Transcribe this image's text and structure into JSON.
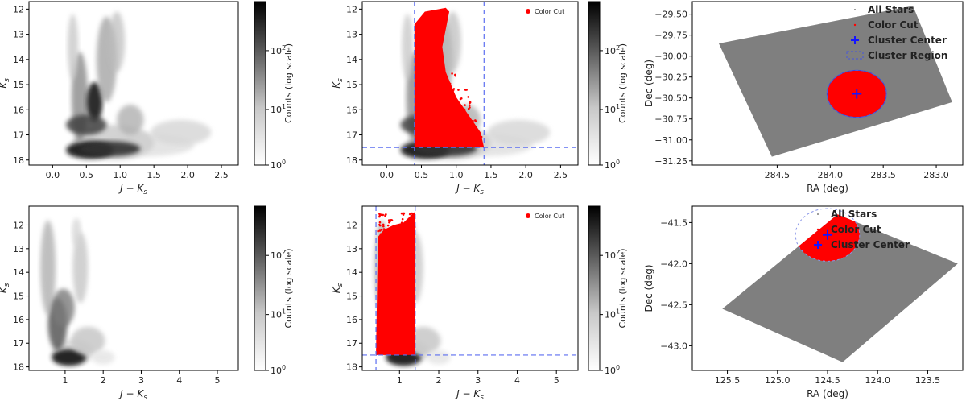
{
  "chart_data": [
    {
      "type": "heatmap",
      "panel": "top-left",
      "xlabel": "J − K_s",
      "ylabel": "K_s",
      "xlim": [
        -0.35,
        2.75
      ],
      "ylim": [
        18.2,
        11.7
      ],
      "xticks": [
        "0.0",
        "0.5",
        "1.0",
        "1.5",
        "2.0",
        "2.5"
      ],
      "xtick_values": [
        0,
        0.5,
        1,
        1.5,
        2,
        2.5
      ],
      "yticks": [
        "12",
        "13",
        "14",
        "15",
        "16",
        "17",
        "18"
      ],
      "ytick_values": [
        12,
        13,
        14,
        15,
        16,
        17,
        18
      ],
      "colorbar": {
        "label": "Counts (log scale)",
        "ticks": [
          "10^0",
          "10^1",
          "10^2"
        ]
      }
    },
    {
      "type": "heatmap",
      "panel": "top-middle",
      "xlabel": "J − K_s",
      "ylabel": "K_s",
      "xlim": [
        -0.35,
        2.75
      ],
      "ylim": [
        18.2,
        11.7
      ],
      "xticks": [
        "0.0",
        "0.5",
        "1.0",
        "1.5",
        "2.0",
        "2.5"
      ],
      "xtick_values": [
        0,
        0.5,
        1,
        1.5,
        2,
        2.5
      ],
      "yticks": [
        "12",
        "13",
        "14",
        "15",
        "16",
        "17",
        "18"
      ],
      "ytick_values": [
        12,
        13,
        14,
        15,
        16,
        17,
        18
      ],
      "legend": [
        "Color Cut"
      ],
      "legend_loc": "top-right",
      "cuts": {
        "j_k_min": 0.4,
        "j_k_max": 1.4,
        "ks_max": 17.5
      },
      "colorbar": {
        "label": "Counts (log scale)",
        "ticks": [
          "10^0",
          "10^1",
          "10^2"
        ]
      }
    },
    {
      "type": "scatter",
      "panel": "top-right",
      "xlabel": "RA (deg)",
      "ylabel": "Dec (deg)",
      "xlim": [
        285.3,
        282.75
      ],
      "ylim": [
        -31.3,
        -29.35
      ],
      "xticks": [
        "284.5",
        "284.0",
        "283.5",
        "283.0"
      ],
      "xtick_values": [
        284.5,
        284,
        283.5,
        283
      ],
      "yticks": [
        "-29.50",
        "-29.75",
        "-30.00",
        "-30.25",
        "-30.50",
        "-30.75",
        "-31.00",
        "-31.25"
      ],
      "ytick_values": [
        -29.5,
        -29.75,
        -30,
        -30.25,
        -30.5,
        -30.75,
        -31,
        -31.25
      ],
      "legend": [
        "All Stars",
        "Color Cut",
        "Cluster Center",
        "Cluster Region"
      ],
      "legend_loc": "top-right",
      "cluster_center": [
        283.75,
        -30.45
      ],
      "cluster_radius_deg": 0.28
    },
    {
      "type": "heatmap",
      "panel": "bottom-left",
      "xlabel": "J − K_s",
      "ylabel": "K_s",
      "xlim": [
        0.05,
        5.55
      ],
      "ylim": [
        18.15,
        11.2
      ],
      "xticks": [
        "1",
        "2",
        "3",
        "4",
        "5"
      ],
      "xtick_values": [
        1,
        2,
        3,
        4,
        5
      ],
      "yticks": [
        "12",
        "13",
        "14",
        "15",
        "16",
        "17",
        "18"
      ],
      "ytick_values": [
        12,
        13,
        14,
        15,
        16,
        17,
        18
      ],
      "colorbar": {
        "label": "Counts (log scale)",
        "ticks": [
          "10^0",
          "10^1",
          "10^2"
        ]
      }
    },
    {
      "type": "heatmap",
      "panel": "bottom-middle",
      "xlabel": "J − K_s",
      "ylabel": "K_s",
      "xlim": [
        0.05,
        5.55
      ],
      "ylim": [
        18.15,
        11.2
      ],
      "xticks": [
        "1",
        "2",
        "3",
        "4",
        "5"
      ],
      "xtick_values": [
        1,
        2,
        3,
        4,
        5
      ],
      "yticks": [
        "12",
        "13",
        "14",
        "15",
        "16",
        "17",
        "18"
      ],
      "ytick_values": [
        12,
        13,
        14,
        15,
        16,
        17,
        18
      ],
      "legend": [
        "Color Cut"
      ],
      "legend_loc": "top-right",
      "cuts": {
        "j_k_min": 0.4,
        "j_k_max": 1.4,
        "ks_max": 17.5
      },
      "colorbar": {
        "label": "Counts (log scale)",
        "ticks": [
          "10^0",
          "10^1",
          "10^2"
        ]
      }
    },
    {
      "type": "scatter",
      "panel": "bottom-right",
      "xlabel": "RA (deg)",
      "ylabel": "Dec (deg)",
      "xlim": [
        125.85,
        123.15
      ],
      "ylim": [
        -43.3,
        -41.3
      ],
      "xticks": [
        "125.5",
        "125.0",
        "124.5",
        "124.0",
        "123.5"
      ],
      "xtick_values": [
        125.5,
        125,
        124.5,
        124,
        123.5
      ],
      "yticks": [
        "-41.5",
        "-42.0",
        "-42.5",
        "-43.0"
      ],
      "ytick_values": [
        -41.5,
        -42,
        -42.5,
        -43
      ],
      "legend": [
        "All Stars",
        "Color Cut",
        "Cluster Center"
      ],
      "legend_loc": "top-right",
      "cluster_center": [
        124.5,
        -41.65
      ],
      "cluster_radius_deg": 0.32
    }
  ]
}
